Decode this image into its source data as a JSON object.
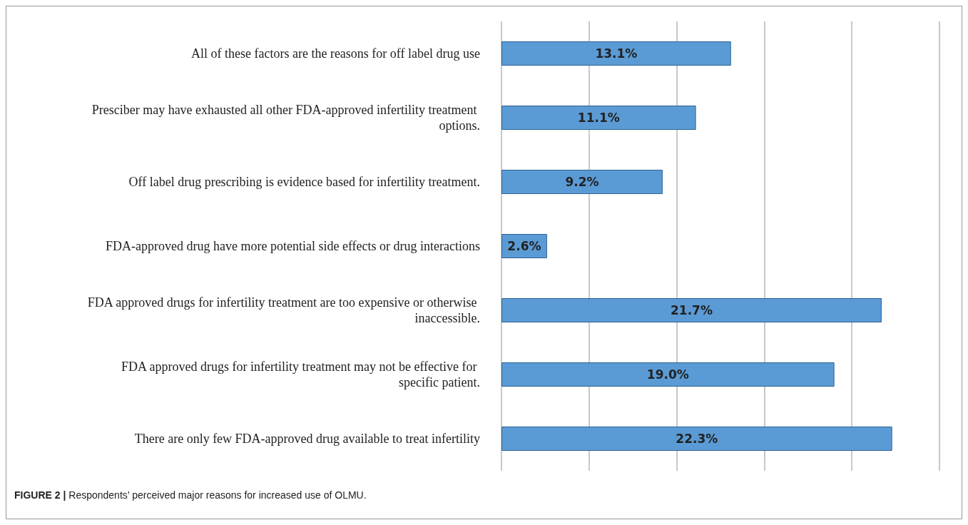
{
  "chart_data": {
    "type": "bar",
    "orientation": "horizontal",
    "categories": [
      "All of these factors are the reasons for off label drug use",
      "Presciber may have exhausted all other FDA-approved infertility treatment options.",
      "Off label drug prescribing is evidence based for infertility treatment.",
      "FDA-approved drug have more potential side effects or drug interactions",
      "FDA approved drugs for infertility treatment are too expensive or otherwise inaccessible.",
      "FDA approved drugs for infertility treatment may not be effective for specific patient.",
      "There are only few FDA-approved drug available to treat infertility"
    ],
    "values": [
      13.1,
      11.1,
      9.2,
      2.6,
      21.7,
      19.0,
      22.3
    ],
    "value_labels": [
      "13.1%",
      "11.1%",
      "9.2%",
      "2.6%",
      "21.7%",
      "19.0%",
      "22.3%"
    ],
    "color": "#5b9bd5",
    "xlim": [
      0,
      25
    ],
    "xticks": [
      {
        "value": 0,
        "label": null
      },
      {
        "value": 5,
        "label": null
      },
      {
        "value": 10,
        "label": null
      },
      {
        "value": 15,
        "label": null
      },
      {
        "value": 20,
        "label": null
      },
      {
        "value": 25,
        "label": null
      }
    ],
    "grid": "x",
    "tick_labels": "y",
    "annotations": [
      "FIGURE 2 | Respondents’ perceived major reasons for increased use of OLMU."
    ]
  }
}
